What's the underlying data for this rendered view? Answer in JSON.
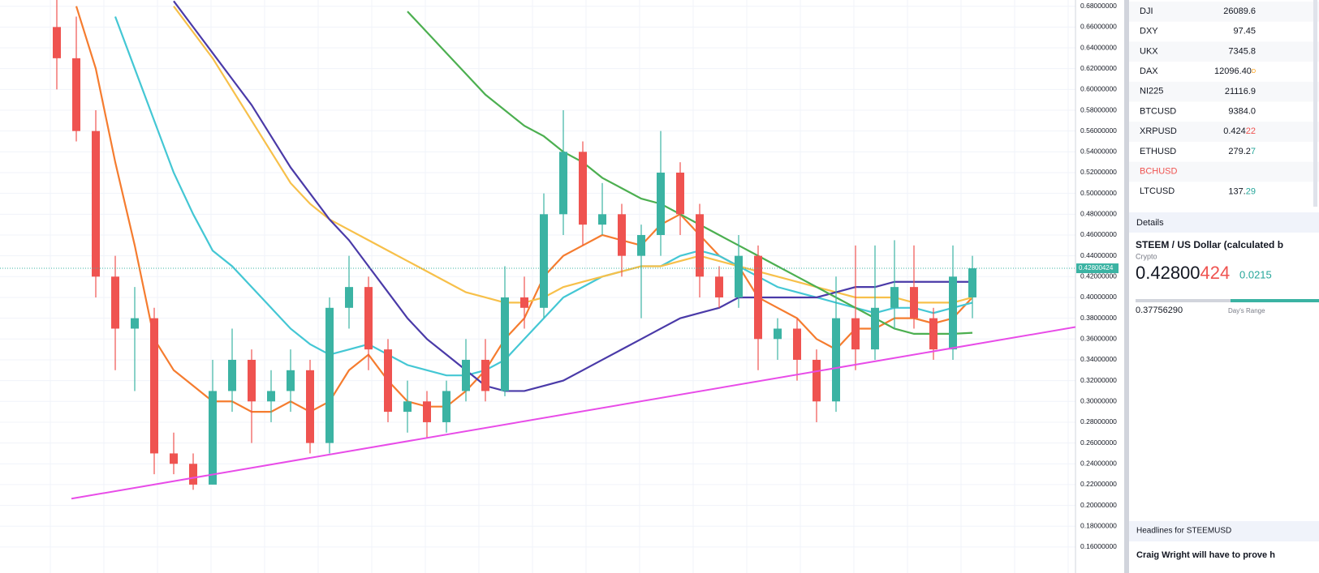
{
  "chart_data": {
    "type": "candlestick",
    "ylim": [
      0.135,
      0.686
    ],
    "yticks": [
      {
        "value": 0.68,
        "label": "0.68000000"
      },
      {
        "value": 0.66,
        "label": "0.66000000"
      },
      {
        "value": 0.64,
        "label": "0.64000000"
      },
      {
        "value": 0.62,
        "label": "0.62000000"
      },
      {
        "value": 0.6,
        "label": "0.60000000"
      },
      {
        "value": 0.58,
        "label": "0.58000000"
      },
      {
        "value": 0.56,
        "label": "0.56000000"
      },
      {
        "value": 0.54,
        "label": "0.54000000"
      },
      {
        "value": 0.52,
        "label": "0.52000000"
      },
      {
        "value": 0.5,
        "label": "0.50000000"
      },
      {
        "value": 0.48,
        "label": "0.48000000"
      },
      {
        "value": 0.46,
        "label": "0.46000000"
      },
      {
        "value": 0.44,
        "label": "0.44000000"
      },
      {
        "value": 0.42,
        "label": "0.42000000"
      },
      {
        "value": 0.4,
        "label": "0.40000000"
      },
      {
        "value": 0.38,
        "label": "0.38000000"
      },
      {
        "value": 0.36,
        "label": "0.36000000"
      },
      {
        "value": 0.34,
        "label": "0.34000000"
      },
      {
        "value": 0.32,
        "label": "0.32000000"
      },
      {
        "value": 0.3,
        "label": "0.30000000"
      },
      {
        "value": 0.28,
        "label": "0.28000000"
      },
      {
        "value": 0.26,
        "label": "0.26000000"
      },
      {
        "value": 0.24,
        "label": "0.24000000"
      },
      {
        "value": 0.22,
        "label": "0.22000000"
      },
      {
        "value": 0.2,
        "label": "0.20000000"
      },
      {
        "value": 0.18,
        "label": "0.18000000"
      },
      {
        "value": 0.16,
        "label": "0.16000000"
      }
    ],
    "grid": true,
    "up_color": "#3bb3a3",
    "down_color": "#ef5350",
    "open": [
      0.66,
      0.63,
      0.56,
      0.42,
      0.37,
      0.38,
      0.25,
      0.24,
      0.22,
      0.31,
      0.34,
      0.3,
      0.31,
      0.33,
      0.26,
      0.39,
      0.41,
      0.35,
      0.29,
      0.3,
      0.28,
      0.31,
      0.34,
      0.31,
      0.4,
      0.39,
      0.48,
      0.54,
      0.47,
      0.48,
      0.44,
      0.46,
      0.52,
      0.48,
      0.42,
      0.4,
      0.44,
      0.36,
      0.37,
      0.34,
      0.3,
      0.38,
      0.35,
      0.39,
      0.41,
      0.38,
      0.35,
      0.4
    ],
    "high": [
      0.69,
      0.67,
      0.58,
      0.44,
      0.41,
      0.39,
      0.27,
      0.25,
      0.34,
      0.37,
      0.35,
      0.33,
      0.35,
      0.34,
      0.4,
      0.44,
      0.42,
      0.36,
      0.32,
      0.31,
      0.32,
      0.36,
      0.36,
      0.43,
      0.42,
      0.5,
      0.58,
      0.55,
      0.51,
      0.49,
      0.47,
      0.56,
      0.53,
      0.49,
      0.43,
      0.46,
      0.45,
      0.38,
      0.38,
      0.35,
      0.42,
      0.45,
      0.45,
      0.455,
      0.45,
      0.39,
      0.45,
      0.44
    ],
    "low": [
      0.6,
      0.55,
      0.4,
      0.33,
      0.31,
      0.23,
      0.23,
      0.215,
      0.22,
      0.29,
      0.26,
      0.28,
      0.29,
      0.25,
      0.25,
      0.37,
      0.33,
      0.28,
      0.27,
      0.265,
      0.27,
      0.3,
      0.3,
      0.305,
      0.37,
      0.38,
      0.46,
      0.45,
      0.46,
      0.42,
      0.38,
      0.44,
      0.46,
      0.4,
      0.39,
      0.39,
      0.33,
      0.34,
      0.32,
      0.28,
      0.29,
      0.33,
      0.34,
      0.37,
      0.37,
      0.34,
      0.34,
      0.38
    ],
    "close": [
      0.63,
      0.56,
      0.42,
      0.37,
      0.38,
      0.25,
      0.24,
      0.22,
      0.31,
      0.34,
      0.3,
      0.31,
      0.33,
      0.26,
      0.39,
      0.41,
      0.35,
      0.29,
      0.3,
      0.28,
      0.31,
      0.34,
      0.31,
      0.4,
      0.39,
      0.48,
      0.54,
      0.47,
      0.48,
      0.44,
      0.46,
      0.52,
      0.48,
      0.42,
      0.4,
      0.44,
      0.36,
      0.37,
      0.34,
      0.3,
      0.38,
      0.35,
      0.39,
      0.41,
      0.38,
      0.35,
      0.42,
      0.428
    ],
    "series": [
      {
        "color": "#f57c2f",
        "values": [
          null,
          0.68,
          0.62,
          0.53,
          0.45,
          0.36,
          0.33,
          0.315,
          0.3,
          0.3,
          0.29,
          0.29,
          0.3,
          0.29,
          0.3,
          0.33,
          0.345,
          0.32,
          0.3,
          0.295,
          0.295,
          0.31,
          0.33,
          0.36,
          0.38,
          0.42,
          0.44,
          0.45,
          0.46,
          0.455,
          0.45,
          0.47,
          0.48,
          0.46,
          0.44,
          0.43,
          0.4,
          0.39,
          0.38,
          0.36,
          0.35,
          0.37,
          0.37,
          0.38,
          0.38,
          0.375,
          0.38,
          0.4
        ]
      },
      {
        "color": "#44c7d4",
        "values": [
          null,
          null,
          null,
          0.67,
          0.62,
          0.57,
          0.52,
          0.48,
          0.445,
          0.43,
          0.41,
          0.39,
          0.37,
          0.355,
          0.345,
          0.35,
          0.355,
          0.345,
          0.335,
          0.33,
          0.325,
          0.325,
          0.33,
          0.34,
          0.36,
          0.38,
          0.4,
          0.41,
          0.42,
          0.425,
          0.43,
          0.43,
          0.44,
          0.445,
          0.44,
          0.43,
          0.42,
          0.41,
          0.405,
          0.4,
          0.395,
          0.39,
          0.385,
          0.39,
          0.39,
          0.385,
          0.39,
          0.395
        ]
      },
      {
        "color": "#f7c04a",
        "values": [
          null,
          null,
          null,
          null,
          null,
          null,
          0.68,
          0.655,
          0.63,
          0.6,
          0.57,
          0.54,
          0.51,
          0.49,
          0.475,
          0.465,
          0.455,
          0.445,
          0.435,
          0.425,
          0.415,
          0.405,
          0.4,
          0.395,
          0.395,
          0.4,
          0.41,
          0.415,
          0.42,
          0.425,
          0.43,
          0.43,
          0.435,
          0.44,
          0.435,
          0.43,
          0.425,
          0.42,
          0.415,
          0.41,
          0.405,
          0.4,
          0.4,
          0.4,
          0.395,
          0.395,
          0.395,
          0.4
        ]
      },
      {
        "color": "#4a3aa8",
        "values": [
          null,
          null,
          null,
          null,
          null,
          null,
          0.685,
          0.66,
          0.635,
          0.61,
          0.585,
          0.555,
          0.525,
          0.5,
          0.475,
          0.455,
          0.43,
          0.405,
          0.38,
          0.36,
          0.345,
          0.33,
          0.315,
          0.31,
          0.31,
          0.315,
          0.32,
          0.33,
          0.34,
          0.35,
          0.36,
          0.37,
          0.38,
          0.385,
          0.39,
          0.4,
          0.4,
          0.4,
          0.4,
          0.4,
          0.405,
          0.41,
          0.41,
          0.415,
          0.415,
          0.415,
          0.415,
          0.415
        ]
      },
      {
        "color": "#4caf50",
        "values": [
          null,
          null,
          null,
          null,
          null,
          null,
          null,
          null,
          null,
          null,
          null,
          null,
          null,
          null,
          null,
          null,
          null,
          null,
          0.675,
          0.655,
          0.635,
          0.615,
          0.595,
          0.58,
          0.565,
          0.555,
          0.54,
          0.53,
          0.515,
          0.505,
          0.495,
          0.49,
          0.48,
          0.47,
          0.46,
          0.45,
          0.44,
          0.43,
          0.42,
          0.41,
          0.4,
          0.39,
          0.38,
          0.37,
          0.365,
          0.365,
          0.365,
          0.366
        ]
      }
    ],
    "trend_line": {
      "color": "#e84ce8",
      "values": [
        0.2065,
        0.3715
      ]
    },
    "last_price": {
      "value": 0.42800424,
      "label": "0.42800424",
      "color": "#3bb3a3"
    }
  },
  "watchlist": [
    {
      "symbol": "DJI",
      "parts": [
        {
          "text": "26089.6",
          "color": "#131722"
        }
      ]
    },
    {
      "symbol": "DXY",
      "parts": [
        {
          "text": "97.45",
          "color": "#131722"
        }
      ]
    },
    {
      "symbol": "UKX",
      "parts": [
        {
          "text": "7345.8",
          "color": "#131722"
        }
      ]
    },
    {
      "symbol": "DAX",
      "parts": [
        {
          "text": "12096.40",
          "color": "#131722"
        },
        {
          "text": "D",
          "color": "#ff9800"
        }
      ]
    },
    {
      "symbol": "NI225",
      "parts": [
        {
          "text": "21116.9",
          "color": "#131722"
        }
      ]
    },
    {
      "symbol": "BTCUSD",
      "parts": [
        {
          "text": "9384.0",
          "color": "#131722"
        }
      ]
    },
    {
      "symbol": "XRPUSD",
      "parts": [
        {
          "text": "0.424",
          "color": "#131722"
        },
        {
          "text": "22",
          "color": "#ef5350"
        }
      ]
    },
    {
      "symbol": "ETHUSD",
      "parts": [
        {
          "text": "279.2",
          "color": "#131722"
        },
        {
          "text": "7",
          "color": "#26a69a"
        }
      ]
    },
    {
      "symbol": "BCHUSD",
      "symbol_color": "#ef5350",
      "parts": []
    },
    {
      "symbol": "LTCUSD",
      "parts": [
        {
          "text": "137.",
          "color": "#131722"
        },
        {
          "text": "29",
          "color": "#26a69a"
        }
      ]
    }
  ],
  "details": {
    "header": "Details",
    "name": "STEEM / US Dollar (calculated b",
    "kind": "Crypto",
    "price_parts": [
      {
        "text": "0.42800",
        "color": "#131722"
      },
      {
        "text": "424",
        "color": "#ef5350"
      }
    ],
    "change": "0.0215",
    "day_low": "0.37756290",
    "range_label": "Day's Range"
  },
  "headlines": {
    "header": "Headlines for STEEMUSD",
    "first": "Craig Wright will have to prove h"
  }
}
